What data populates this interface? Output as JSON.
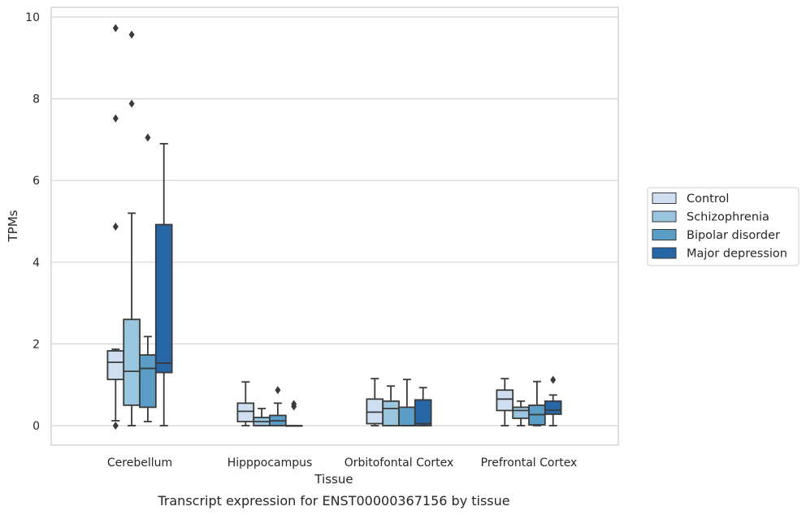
{
  "chart_data": {
    "type": "box",
    "title": "Transcript expression for ENST00000367156 by tissue",
    "xlabel": "Tissue",
    "ylabel": "TPMs",
    "ylim": [
      -0.45,
      10.2
    ],
    "yticks": [
      0,
      2,
      4,
      6,
      8,
      10
    ],
    "grid": "horizontal",
    "legend_position": "right",
    "categories": [
      "Cerebellum",
      "Hipppocampus",
      "Orbitofontal Cortex",
      "Prefrontal Cortex"
    ],
    "series": [
      {
        "name": "Control",
        "color": "#cfdef0",
        "boxes": [
          {
            "whislo": 0.12,
            "q1": 1.13,
            "med": 1.55,
            "q3": 1.83,
            "whishi": 1.87,
            "fliers": [
              9.73,
              7.52,
              4.87,
              0.0
            ]
          },
          {
            "whislo": 0.0,
            "q1": 0.1,
            "med": 0.35,
            "q3": 0.55,
            "whishi": 1.07,
            "fliers": []
          },
          {
            "whislo": 0.0,
            "q1": 0.05,
            "med": 0.33,
            "q3": 0.65,
            "whishi": 1.15,
            "fliers": []
          },
          {
            "whislo": 0.0,
            "q1": 0.37,
            "med": 0.65,
            "q3": 0.87,
            "whishi": 1.15,
            "fliers": []
          }
        ]
      },
      {
        "name": "Schizophrenia",
        "color": "#9ac5df",
        "boxes": [
          {
            "whislo": 0.0,
            "q1": 0.5,
            "med": 1.33,
            "q3": 2.6,
            "whishi": 5.2,
            "fliers": [
              9.57,
              7.88
            ]
          },
          {
            "whislo": 0.0,
            "q1": 0.0,
            "med": 0.1,
            "q3": 0.2,
            "whishi": 0.42,
            "fliers": []
          },
          {
            "whislo": 0.0,
            "q1": 0.0,
            "med": 0.42,
            "q3": 0.6,
            "whishi": 0.97,
            "fliers": []
          },
          {
            "whislo": 0.0,
            "q1": 0.18,
            "med": 0.37,
            "q3": 0.45,
            "whishi": 0.6,
            "fliers": []
          }
        ]
      },
      {
        "name": "Bipolar disorder",
        "color": "#5a9ec8",
        "boxes": [
          {
            "whislo": 0.1,
            "q1": 0.45,
            "med": 1.4,
            "q3": 1.73,
            "whishi": 2.18,
            "fliers": [
              7.05
            ]
          },
          {
            "whislo": 0.0,
            "q1": 0.0,
            "med": 0.12,
            "q3": 0.25,
            "whishi": 0.55,
            "fliers": [
              0.87
            ]
          },
          {
            "whislo": 0.0,
            "q1": 0.0,
            "med": 0.0,
            "q3": 0.45,
            "whishi": 1.13,
            "fliers": []
          },
          {
            "whislo": 0.0,
            "q1": 0.02,
            "med": 0.27,
            "q3": 0.5,
            "whishi": 1.08,
            "fliers": []
          }
        ]
      },
      {
        "name": "Major depression",
        "color": "#2767a8",
        "boxes": [
          {
            "whislo": 0.0,
            "q1": 1.3,
            "med": 1.53,
            "q3": 4.92,
            "whishi": 6.9,
            "fliers": []
          },
          {
            "whislo": 0.0,
            "q1": 0.0,
            "med": 0.0,
            "q3": 0.0,
            "whishi": 0.0,
            "fliers": [
              0.53,
              0.47
            ]
          },
          {
            "whislo": 0.0,
            "q1": 0.0,
            "med": 0.05,
            "q3": 0.63,
            "whishi": 0.93,
            "fliers": []
          },
          {
            "whislo": 0.0,
            "q1": 0.28,
            "med": 0.38,
            "q3": 0.6,
            "whishi": 0.75,
            "fliers": [
              1.12
            ]
          }
        ]
      }
    ]
  }
}
